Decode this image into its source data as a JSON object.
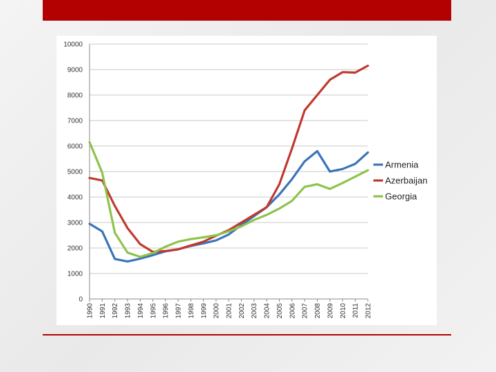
{
  "colors": {
    "accent_bar": "#b30000",
    "armenia": "#3b73b9",
    "azerbaijan": "#c0392f",
    "georgia": "#8dc34a"
  },
  "chart_data": {
    "type": "line",
    "title": "",
    "xlabel": "",
    "ylabel": "",
    "ylim": [
      0,
      10000
    ],
    "grid": "horizontal",
    "legend_position": "right",
    "x": [
      "1990",
      "1991",
      "1992",
      "1993",
      "1994",
      "1995",
      "1996",
      "1997",
      "1998",
      "1999",
      "2000",
      "2001",
      "2002",
      "2003",
      "2004",
      "2005",
      "2006",
      "2007",
      "2008",
      "2009",
      "2010",
      "2011",
      "2012"
    ],
    "y_ticks": [
      "0",
      "1000",
      "2000",
      "3000",
      "4000",
      "5000",
      "6000",
      "7000",
      "8000",
      "9000",
      "10000"
    ],
    "series": [
      {
        "name": "Armenia",
        "color": "#3b73b9",
        "values": [
          2950,
          2650,
          1570,
          1470,
          1580,
          1720,
          1870,
          1950,
          2080,
          2180,
          2300,
          2530,
          2900,
          3250,
          3600,
          4100,
          4700,
          5400,
          5800,
          5000,
          5100,
          5300,
          5750
        ]
      },
      {
        "name": "Azerbaijan",
        "color": "#c0392f",
        "values": [
          4750,
          4650,
          3650,
          2780,
          2150,
          1850,
          1880,
          1950,
          2100,
          2250,
          2480,
          2700,
          3000,
          3300,
          3600,
          4500,
          5900,
          7400,
          8000,
          8600,
          8900,
          8880,
          9150
        ]
      },
      {
        "name": "Georgia",
        "color": "#8dc34a",
        "values": [
          6150,
          4950,
          2600,
          1820,
          1650,
          1800,
          2050,
          2250,
          2350,
          2420,
          2500,
          2650,
          2850,
          3100,
          3300,
          3550,
          3850,
          4400,
          4500,
          4320,
          4550,
          4800,
          5050
        ]
      }
    ]
  }
}
